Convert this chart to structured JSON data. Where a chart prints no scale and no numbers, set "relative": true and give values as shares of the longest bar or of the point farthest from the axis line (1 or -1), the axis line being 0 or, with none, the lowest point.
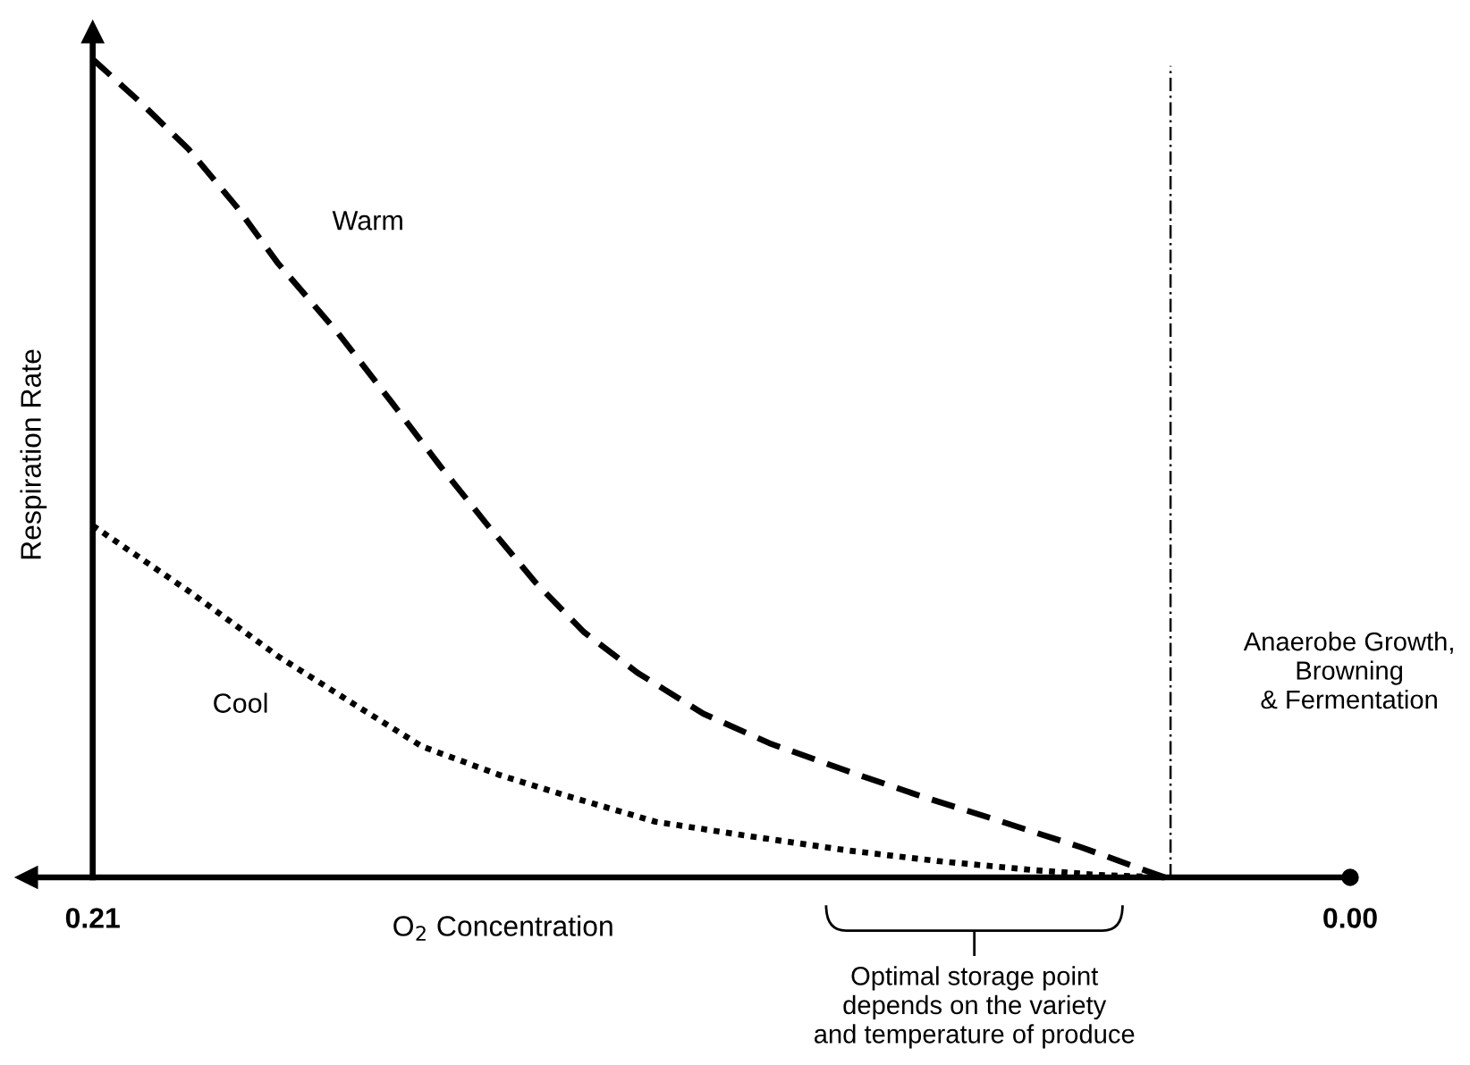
{
  "chart_data": {
    "type": "line",
    "relative": true,
    "xlabel": "O$_{2}$ Concentration",
    "ylabel": "Respiration Rate",
    "xlim": [
      0.221,
      0
    ],
    "xticks": [
      0.21,
      {
        "value": 0,
        "label": "0.00"
      }
    ],
    "legend": false,
    "series": [
      {
        "name": "Warm",
        "color": "#000000",
        "line_style": "dashed",
        "x": [
          0.21,
          0.202,
          0.194,
          0.186,
          0.179,
          0.169,
          0.16,
          0.152,
          0.144,
          0.136,
          0.128,
          0.119,
          0.108,
          0.097,
          0.084,
          0.072,
          0.059,
          0.045,
          0.031
        ],
        "values": [
          1.0,
          0.947,
          0.89,
          0.82,
          0.75,
          0.665,
          0.58,
          0.503,
          0.43,
          0.36,
          0.3,
          0.25,
          0.2,
          0.164,
          0.13,
          0.1,
          0.07,
          0.037,
          0
        ]
      },
      {
        "name": "Cool",
        "color": "#000000",
        "line_style": "dotted",
        "x": [
          0.21,
          0.194,
          0.179,
          0.166,
          0.155,
          0.142,
          0.131,
          0.116,
          0.1,
          0.084,
          0.069,
          0.053,
          0.042,
          0.031
        ],
        "values": [
          0.43,
          0.35,
          0.27,
          0.21,
          0.16,
          0.125,
          0.1,
          0.068,
          0.05,
          0.033,
          0.02,
          0.009,
          0.003,
          0
        ]
      }
    ],
    "ref_lines": [
      {
        "axis": "x",
        "value": 0.03,
        "label": "Anaerobe Growth,\nBrowning\n& Fermentation",
        "color": "#000000",
        "line_style": "dashdot"
      }
    ],
    "annotations": [
      "Optimal storage point\ndepends on the variety\nand temperature of produce"
    ]
  }
}
